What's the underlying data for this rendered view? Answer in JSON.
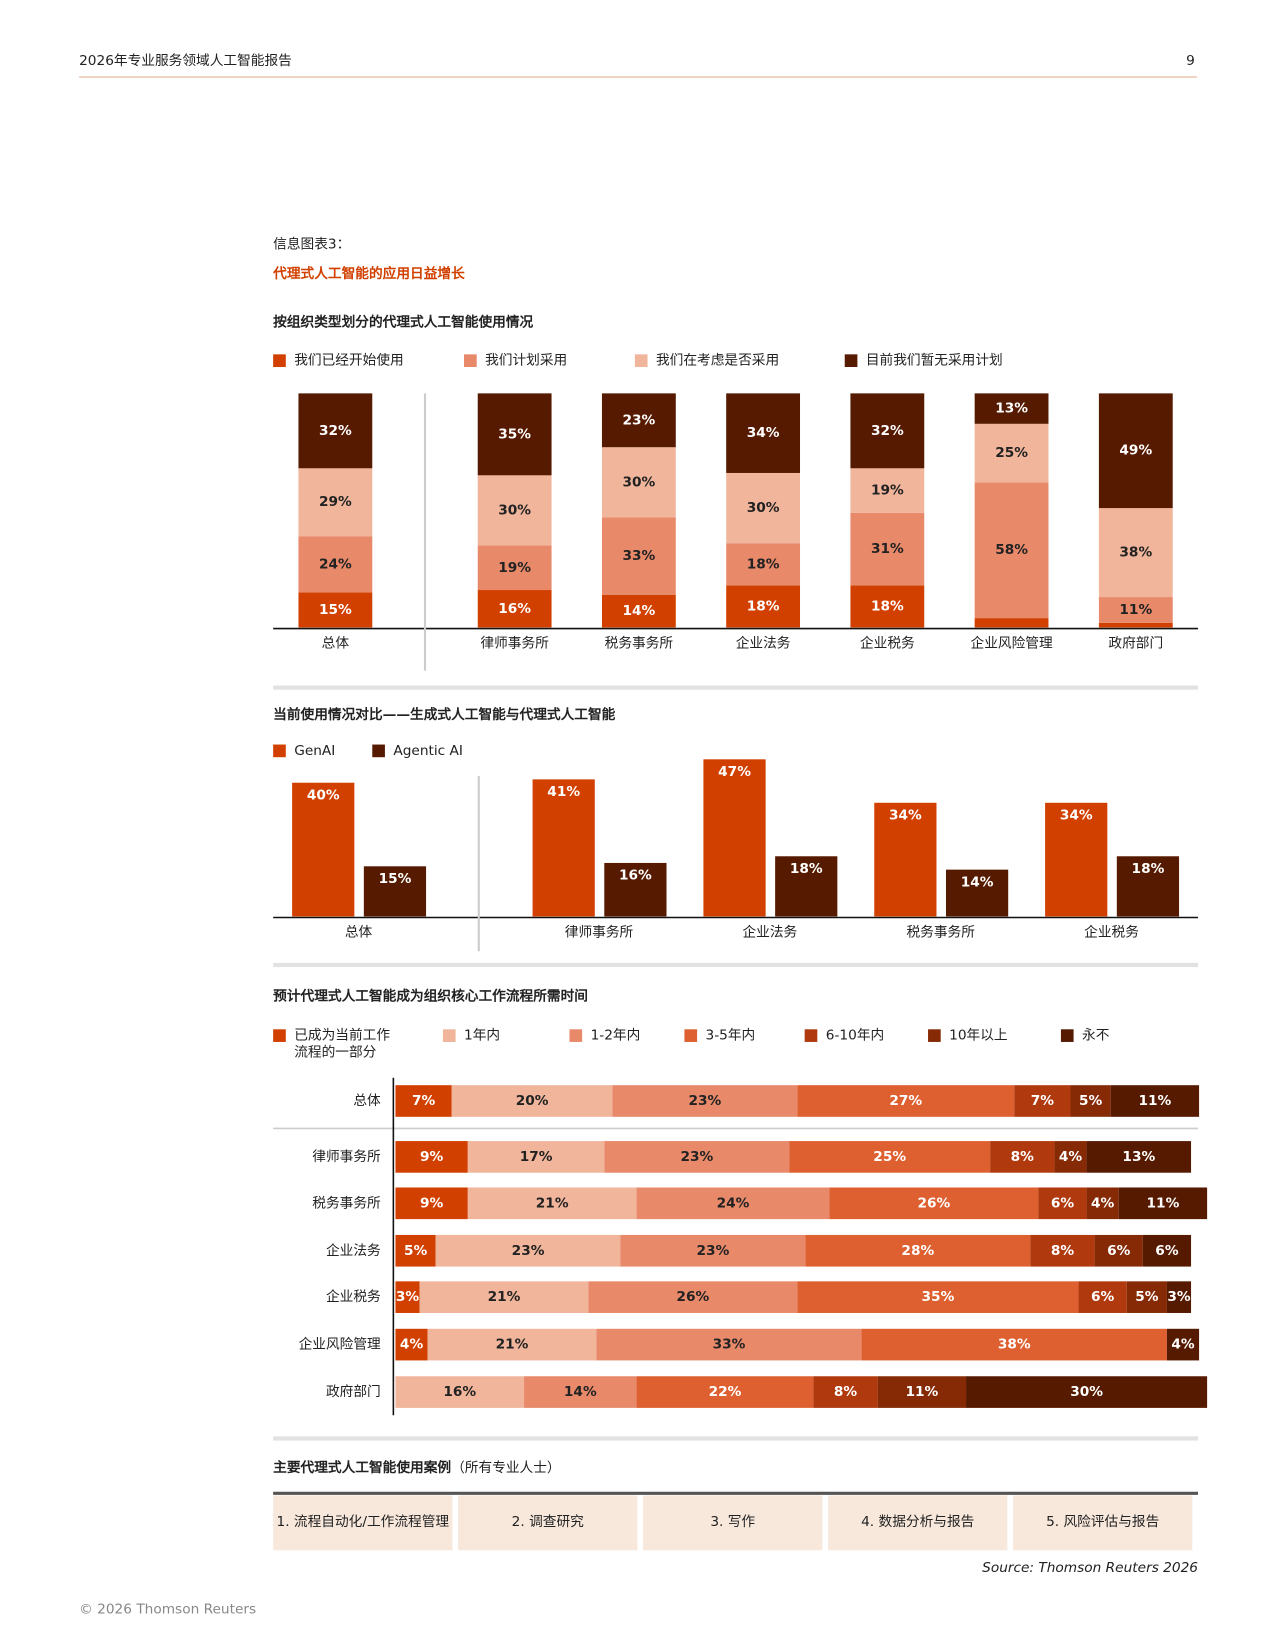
{
  "header": {
    "title": "2026年专业服务领域人工智能报告",
    "page": "9"
  },
  "infographic": {
    "label": "信息图表3：",
    "title": "代理式人工智能的应用日益增长"
  },
  "chart_data": [
    {
      "type": "bar",
      "stacked": true,
      "orientation": "vertical",
      "legend": "top-left",
      "title": "按组织类型划分的代理式人工智能使用情况",
      "categories": [
        "总体",
        "律师事务所",
        "税务事务所",
        "企业法务",
        "企业税务",
        "企业风险管理",
        "政府部门"
      ],
      "series": [
        {
          "name": "我们已经开始使用",
          "color": "#d24000",
          "values": [
            15,
            16,
            14,
            18,
            18,
            4,
            2
          ],
          "value_labels": [
            "15%",
            "16%",
            "14%",
            "18%",
            "18%",
            null,
            null
          ]
        },
        {
          "name": "我们计划采用",
          "color": "#e8896a",
          "values": [
            24,
            19,
            33,
            18,
            31,
            58,
            11
          ],
          "value_labels": [
            "24%",
            "19%",
            "33%",
            "18%",
            "31%",
            "58%",
            "11%"
          ]
        },
        {
          "name": "我们在考虑是否采用",
          "color": "#f0b59b",
          "values": [
            29,
            30,
            30,
            30,
            19,
            25,
            38
          ],
          "value_labels": [
            "29%",
            "30%",
            "30%",
            "30%",
            "19%",
            "25%",
            "38%"
          ]
        },
        {
          "name": "目前我们暂无采用计划",
          "color": "#561a00",
          "values": [
            32,
            35,
            23,
            34,
            32,
            13,
            49
          ],
          "value_labels": [
            "32%",
            "35%",
            "23%",
            "34%",
            "32%",
            "13%",
            "49%"
          ]
        }
      ]
    },
    {
      "type": "bar",
      "stacked": false,
      "orientation": "vertical",
      "legend": "top-left",
      "title": "当前使用情况对比——生成式人工智能与代理式人工智能",
      "categories": [
        "总体",
        "律师事务所",
        "企业法务",
        "税务事务所",
        "企业税务"
      ],
      "series": [
        {
          "name": "GenAI",
          "color": "#d24000",
          "values": [
            40,
            41,
            47,
            34,
            34
          ],
          "value_labels": [
            "40%",
            "41%",
            "47%",
            "34%",
            "34%"
          ]
        },
        {
          "name": "Agentic AI",
          "color": "#561a00",
          "values": [
            15,
            16,
            18,
            14,
            18
          ],
          "value_labels": [
            "15%",
            "16%",
            "18%",
            "14%",
            "18%"
          ]
        }
      ]
    },
    {
      "type": "bar",
      "stacked": true,
      "orientation": "horizontal",
      "legend": "top-left",
      "title": "预计代理式人工智能成为组织核心工作流程所需时间",
      "categories": [
        "总体",
        "律师事务所",
        "税务事务所",
        "企业法务",
        "企业税务",
        "企业风险管理",
        "政府部门"
      ],
      "series": [
        {
          "name": "已成为当前工作流程的一部分",
          "color": "#d24000",
          "values": [
            7,
            9,
            9,
            5,
            3,
            4,
            null
          ],
          "value_labels": [
            "7%",
            "9%",
            "9%",
            "5%",
            "3%",
            "4%",
            null
          ]
        },
        {
          "name": "1年内",
          "color": "#f0b59b",
          "values": [
            20,
            17,
            21,
            23,
            21,
            21,
            16
          ],
          "value_labels": [
            "20%",
            "17%",
            "21%",
            "23%",
            "21%",
            "21%",
            "16%"
          ]
        },
        {
          "name": "1-2年内",
          "color": "#e8896a",
          "values": [
            23,
            23,
            24,
            23,
            26,
            33,
            14
          ],
          "value_labels": [
            "23%",
            "23%",
            "24%",
            "23%",
            "26%",
            "33%",
            "14%"
          ]
        },
        {
          "name": "3-5年内",
          "color": "#de6030",
          "values": [
            27,
            25,
            26,
            28,
            35,
            38,
            22
          ],
          "value_labels": [
            "27%",
            "25%",
            "26%",
            "28%",
            "35%",
            "38%",
            "22%"
          ]
        },
        {
          "name": "6-10年内",
          "color": "#b03a0e",
          "values": [
            7,
            8,
            6,
            8,
            6,
            null,
            8
          ],
          "value_labels": [
            "7%",
            "8%",
            "6%",
            "8%",
            "6%",
            null,
            "8%"
          ]
        },
        {
          "name": "10年以上",
          "color": "#862a06",
          "values": [
            5,
            4,
            4,
            6,
            5,
            null,
            11
          ],
          "value_labels": [
            "5%",
            "4%",
            "4%",
            "6%",
            "5%",
            null,
            "11%"
          ]
        },
        {
          "name": "永不",
          "color": "#561a00",
          "values": [
            11,
            13,
            11,
            6,
            3,
            4,
            30
          ],
          "value_labels": [
            "11%",
            "13%",
            "11%",
            "6%",
            "3%",
            "4%",
            "30%"
          ]
        }
      ]
    }
  ],
  "use_cases": {
    "title": "主要代理式人工智能使用案例",
    "subtitle": "（所有专业人士）",
    "items": [
      "1. 流程自动化/工作流程管理",
      "2. 调查研究",
      "3. 写作",
      "4. 数据分析与报告",
      "5. 风险评估与报告"
    ]
  },
  "source": "Source: Thomson Reuters 2026",
  "footer": "© 2026 Thomson Reuters"
}
